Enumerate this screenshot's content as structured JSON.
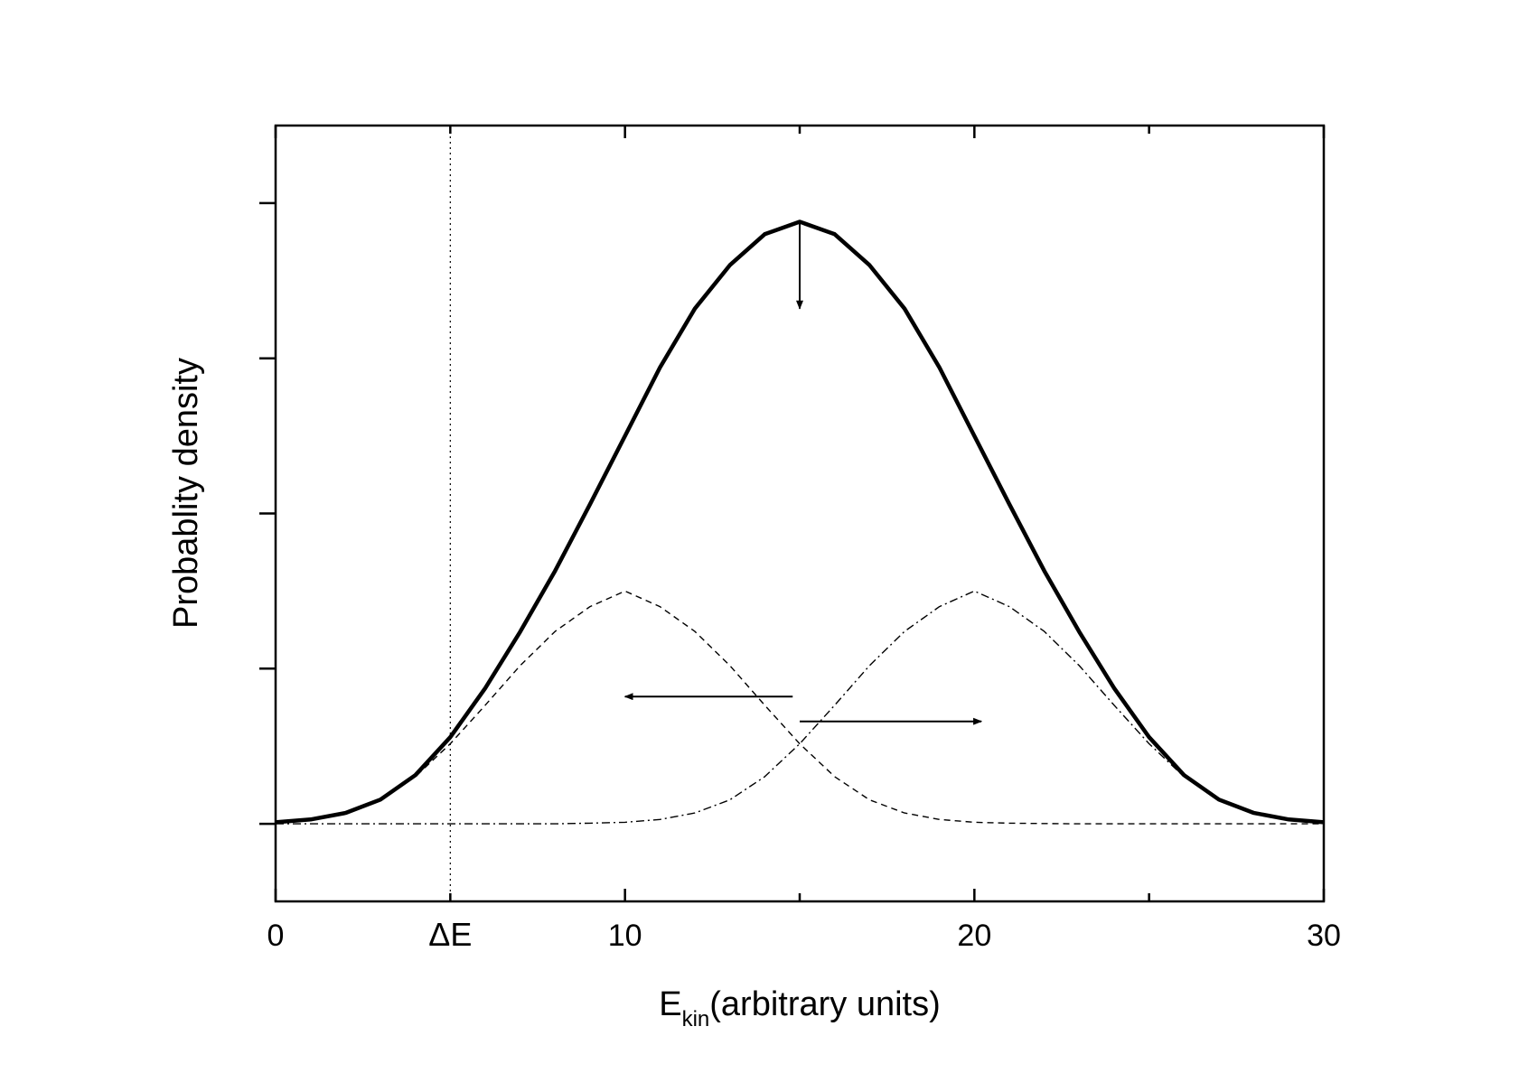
{
  "chart_data": {
    "type": "line",
    "title": "",
    "xlabel": {
      "main": "E",
      "subscript": "kin",
      "rest": "(arbitrary units)"
    },
    "ylabel": "Probablity density",
    "xlim": [
      0,
      30
    ],
    "ylim": [
      -0.25,
      2.25
    ],
    "x_ticks": [
      {
        "value": 0,
        "label": "0"
      },
      {
        "value": 5,
        "label": "ΔE"
      },
      {
        "value": 10,
        "label": "10"
      },
      {
        "value": 20,
        "label": "20"
      },
      {
        "value": 30,
        "label": "30"
      }
    ],
    "x_minor_ticks": [
      5,
      15,
      25
    ],
    "y_ticks": [
      0,
      0.5,
      1.0,
      1.5,
      2.0
    ],
    "grid": false,
    "threshold_line": {
      "x": 5,
      "style": "dotted"
    },
    "series": [
      {
        "style": "solid-thick",
        "x": [
          0,
          1,
          2,
          3,
          4,
          5,
          6,
          7,
          8,
          9,
          10,
          11,
          12,
          13,
          14,
          15,
          16,
          17,
          18,
          19,
          20,
          21,
          22,
          23,
          24,
          25,
          26,
          27,
          28,
          29,
          30
        ],
        "y": [
          0.005,
          0.014,
          0.035,
          0.078,
          0.157,
          0.279,
          0.437,
          0.619,
          0.815,
          1.03,
          1.25,
          1.47,
          1.66,
          1.8,
          1.9,
          1.94,
          1.9,
          1.8,
          1.66,
          1.47,
          1.25,
          1.03,
          0.815,
          0.619,
          0.437,
          0.279,
          0.157,
          0.078,
          0.035,
          0.014,
          0.005
        ]
      },
      {
        "style": "dashed",
        "x": [
          0,
          1,
          2,
          3,
          4,
          5,
          6,
          7,
          8,
          9,
          10,
          11,
          12,
          13,
          14,
          15,
          16,
          17,
          18,
          19,
          20,
          21,
          22,
          23,
          24,
          25,
          26,
          27,
          28,
          29,
          30
        ],
        "y": [
          0.005,
          0.014,
          0.035,
          0.077,
          0.152,
          0.258,
          0.382,
          0.51,
          0.62,
          0.7,
          0.75,
          0.7,
          0.62,
          0.51,
          0.382,
          0.258,
          0.152,
          0.077,
          0.035,
          0.014,
          0.005,
          0.002,
          0.001,
          0,
          0,
          0,
          0,
          0,
          0,
          0,
          0
        ]
      },
      {
        "style": "dash-dot",
        "x": [
          0,
          1,
          2,
          3,
          4,
          5,
          6,
          7,
          8,
          9,
          10,
          11,
          12,
          13,
          14,
          15,
          16,
          17,
          18,
          19,
          20,
          21,
          22,
          23,
          24,
          25,
          26,
          27,
          28,
          29,
          30
        ],
        "y": [
          0,
          0,
          0,
          0,
          0,
          0,
          0,
          0,
          0,
          0.002,
          0.005,
          0.014,
          0.035,
          0.077,
          0.152,
          0.258,
          0.382,
          0.51,
          0.62,
          0.7,
          0.75,
          0.7,
          0.62,
          0.51,
          0.382,
          0.258,
          0.152,
          0.077,
          0.035,
          0.014,
          0.005
        ]
      }
    ],
    "annotations": [
      {
        "type": "arrow",
        "from": [
          15,
          1.94
        ],
        "to": [
          15,
          1.66
        ]
      },
      {
        "type": "arrow",
        "from": [
          14.8,
          0.41
        ],
        "to": [
          10,
          0.41
        ]
      },
      {
        "type": "arrow",
        "from": [
          15,
          0.33
        ],
        "to": [
          20.2,
          0.33
        ]
      }
    ]
  }
}
